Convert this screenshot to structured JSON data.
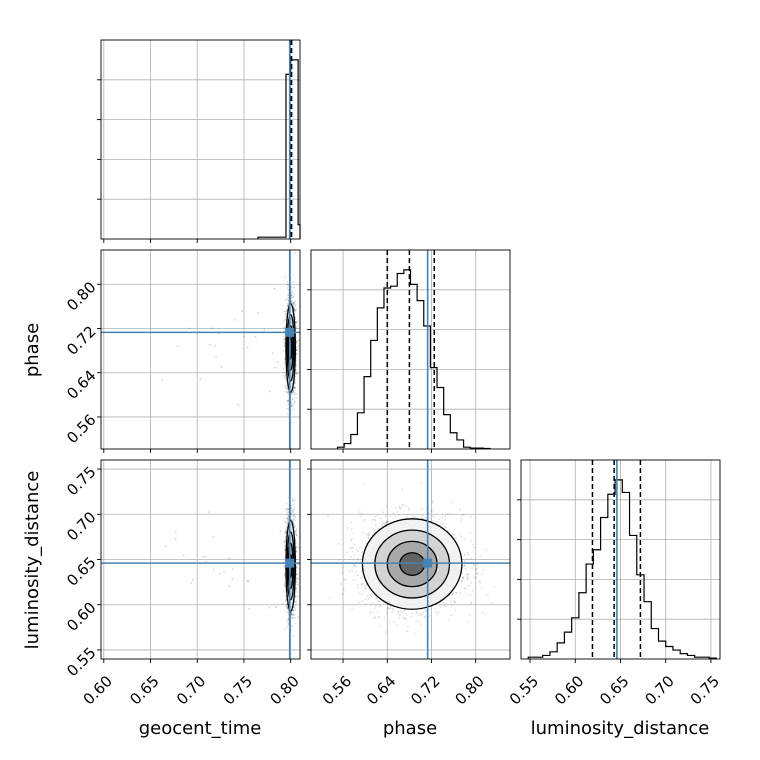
{
  "chart_data": {
    "type": "scatter",
    "subtype": "corner-plot",
    "parameters": [
      "geocent_time",
      "phase",
      "luminosity_distance"
    ],
    "axis_labels": {
      "geocent_time": "geocent_time",
      "phase": "phase",
      "luminosity_distance": "luminosity_distance"
    },
    "ranges": {
      "geocent_time": [
        0.597,
        0.81
      ],
      "phase": [
        0.502,
        0.862
      ],
      "luminosity_distance": [
        0.54,
        0.76
      ]
    },
    "ticks": {
      "geocent_time": [
        "0.60",
        "0.65",
        "0.70",
        "0.75",
        "0.80"
      ],
      "phase": [
        "0.56",
        "0.64",
        "0.72",
        "0.80"
      ],
      "luminosity_distance": [
        "0.55",
        "0.60",
        "0.65",
        "0.70",
        "0.75"
      ]
    },
    "truths": {
      "geocent_time": 0.799,
      "phase": 0.713,
      "luminosity_distance": 0.646
    },
    "quantiles": {
      "geocent_time": [
        0.7995,
        0.8002,
        0.801
      ],
      "phase": [
        0.64,
        0.68,
        0.725
      ],
      "luminosity_distance": [
        0.619,
        0.643,
        0.672
      ]
    },
    "histograms": {
      "geocent_time": {
        "edges": [
          0.765,
          0.795,
          0.8,
          0.808,
          0.81
        ],
        "counts": [
          1,
          92,
          100,
          8
        ]
      },
      "phase": {
        "edges": [
          0.55,
          0.562,
          0.574,
          0.586,
          0.598,
          0.61,
          0.622,
          0.634,
          0.646,
          0.658,
          0.67,
          0.682,
          0.694,
          0.706,
          0.718,
          0.73,
          0.742,
          0.754,
          0.766,
          0.778,
          0.79,
          0.802,
          0.814,
          0.826
        ],
        "counts": [
          1,
          3,
          8,
          20,
          40,
          60,
          78,
          89,
          90,
          97,
          99,
          91,
          82,
          68,
          45,
          34,
          19,
          9,
          5,
          1,
          0.5,
          0.5,
          0.3
        ]
      },
      "luminosity_distance": {
        "edges": [
          0.548,
          0.556,
          0.564,
          0.572,
          0.58,
          0.588,
          0.596,
          0.604,
          0.612,
          0.62,
          0.628,
          0.636,
          0.644,
          0.652,
          0.66,
          0.668,
          0.676,
          0.684,
          0.692,
          0.7,
          0.708,
          0.716,
          0.724,
          0.732,
          0.74,
          0.748,
          0.756
        ],
        "counts": [
          1,
          1,
          2,
          4,
          9,
          15,
          23,
          37,
          53,
          61,
          79,
          92,
          100,
          93,
          69,
          47,
          32,
          17,
          10,
          7,
          5,
          3,
          2,
          1,
          1,
          0.5
        ]
      }
    },
    "scatter_blobs": {
      "geocent_time_phase": {
        "center": [
          0.8,
          0.685
        ],
        "sd": [
          0.0025,
          0.04
        ]
      },
      "geocent_time_luminosity_distance": {
        "center": [
          0.8,
          0.643
        ],
        "sd": [
          0.0025,
          0.025
        ]
      },
      "phase_luminosity_distance": {
        "center": [
          0.685,
          0.645
        ],
        "sd": [
          0.045,
          0.025
        ]
      }
    },
    "grid": true,
    "truth_color": "#4682b4",
    "contour_color": "#000000"
  }
}
